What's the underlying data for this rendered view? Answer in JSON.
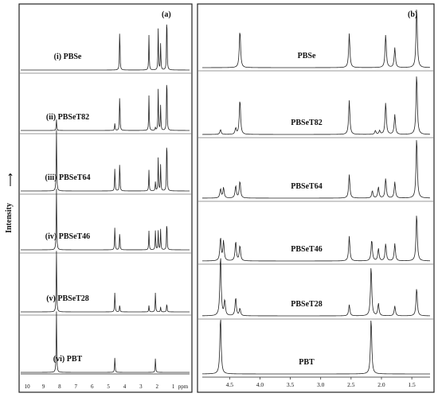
{
  "figure": {
    "ylabel": "Intensity",
    "arrow_glyph": "⟶"
  },
  "chart_data": [
    {
      "panel": "(a)",
      "type": "line",
      "subtype": "stacked 1H NMR spectra",
      "xlabel": "ppm",
      "xlim": [
        10.4,
        0
      ],
      "x_reversed": true,
      "x_ticks": [
        "10",
        "9",
        "8",
        "7",
        "6",
        "5",
        "4",
        "3",
        "2",
        "1",
        "ppm"
      ],
      "x_tick_values": [
        10,
        9,
        8,
        7,
        6,
        5,
        4,
        3,
        2,
        1
      ],
      "grid": false,
      "series": [
        {
          "name": "(i) PBSe",
          "peaks": [
            {
              "x": 4.3,
              "y": 0.7
            },
            {
              "x": 2.5,
              "y": 0.55
            },
            {
              "x": 1.93,
              "y": 0.65
            },
            {
              "x": 1.78,
              "y": 0.42
            },
            {
              "x": 1.4,
              "y": 1.0
            }
          ]
        },
        {
          "name": "(ii) PBSeT82",
          "peaks": [
            {
              "x": 8.2,
              "y": 0.18
            },
            {
              "x": 4.6,
              "y": 0.12
            },
            {
              "x": 4.3,
              "y": 0.62
            },
            {
              "x": 2.5,
              "y": 0.55
            },
            {
              "x": 2.1,
              "y": 0.05
            },
            {
              "x": 1.93,
              "y": 0.65
            },
            {
              "x": 1.78,
              "y": 0.4
            },
            {
              "x": 1.4,
              "y": 1.0
            }
          ]
        },
        {
          "name": "(iii) PBSeT64",
          "peaks": [
            {
              "x": 8.2,
              "y": 1.0
            },
            {
              "x": 4.6,
              "y": 0.38
            },
            {
              "x": 4.3,
              "y": 0.5
            },
            {
              "x": 2.5,
              "y": 0.33
            },
            {
              "x": 2.1,
              "y": 0.15
            },
            {
              "x": 1.93,
              "y": 0.52
            },
            {
              "x": 1.78,
              "y": 0.42
            },
            {
              "x": 1.4,
              "y": 0.95
            }
          ]
        },
        {
          "name": "(iv) PBSeT46",
          "peaks": [
            {
              "x": 8.2,
              "y": 1.0
            },
            {
              "x": 4.6,
              "y": 0.38
            },
            {
              "x": 4.3,
              "y": 0.3
            },
            {
              "x": 2.5,
              "y": 0.3
            },
            {
              "x": 2.1,
              "y": 0.32
            },
            {
              "x": 1.93,
              "y": 0.3
            },
            {
              "x": 1.78,
              "y": 0.33
            },
            {
              "x": 1.4,
              "y": 0.52
            }
          ]
        },
        {
          "name": "(v) PBSeT28",
          "peaks": [
            {
              "x": 8.2,
              "y": 1.0
            },
            {
              "x": 4.6,
              "y": 0.33
            },
            {
              "x": 4.3,
              "y": 0.12
            },
            {
              "x": 2.5,
              "y": 0.1
            },
            {
              "x": 2.1,
              "y": 0.32
            },
            {
              "x": 1.78,
              "y": 0.08
            },
            {
              "x": 1.4,
              "y": 0.15
            }
          ]
        },
        {
          "name": "(vi) PBT",
          "peaks": [
            {
              "x": 8.2,
              "y": 1.0
            },
            {
              "x": 4.6,
              "y": 0.25
            },
            {
              "x": 2.1,
              "y": 0.23
            }
          ]
        }
      ]
    },
    {
      "panel": "(b)",
      "type": "line",
      "subtype": "stacked 1H NMR spectra (expanded)",
      "xlabel": "",
      "xlim": [
        4.95,
        1.2
      ],
      "x_reversed": true,
      "x_ticks": [
        "4.5",
        "4.0",
        "3.5",
        "3.0",
        "2.5",
        "2.0",
        "1.5"
      ],
      "x_tick_values": [
        4.5,
        4.0,
        3.5,
        3.0,
        2.5,
        2.0,
        1.5
      ],
      "grid": false,
      "series": [
        {
          "name": "PBSe",
          "peaks": [
            {
              "x": 4.33,
              "y": 0.62
            },
            {
              "x": 2.53,
              "y": 0.55
            },
            {
              "x": 1.93,
              "y": 0.54
            },
            {
              "x": 1.78,
              "y": 0.32
            },
            {
              "x": 1.42,
              "y": 1.0
            }
          ]
        },
        {
          "name": "PBSeT82",
          "peaks": [
            {
              "x": 4.65,
              "y": 0.08
            },
            {
              "x": 4.4,
              "y": 0.1
            },
            {
              "x": 4.33,
              "y": 0.58
            },
            {
              "x": 2.53,
              "y": 0.55
            },
            {
              "x": 2.1,
              "y": 0.06
            },
            {
              "x": 2.03,
              "y": 0.06
            },
            {
              "x": 1.93,
              "y": 0.52
            },
            {
              "x": 1.78,
              "y": 0.32
            },
            {
              "x": 1.42,
              "y": 1.0
            }
          ]
        },
        {
          "name": "PBSeT64",
          "peaks": [
            {
              "x": 4.65,
              "y": 0.15
            },
            {
              "x": 4.6,
              "y": 0.17
            },
            {
              "x": 4.4,
              "y": 0.2
            },
            {
              "x": 4.33,
              "y": 0.28
            },
            {
              "x": 2.53,
              "y": 0.38
            },
            {
              "x": 2.15,
              "y": 0.12
            },
            {
              "x": 2.05,
              "y": 0.18
            },
            {
              "x": 1.93,
              "y": 0.32
            },
            {
              "x": 1.78,
              "y": 0.26
            },
            {
              "x": 1.42,
              "y": 1.0
            }
          ]
        },
        {
          "name": "PBSeT46",
          "peaks": [
            {
              "x": 4.65,
              "y": 0.38
            },
            {
              "x": 4.6,
              "y": 0.32
            },
            {
              "x": 4.4,
              "y": 0.32
            },
            {
              "x": 4.33,
              "y": 0.25
            },
            {
              "x": 2.53,
              "y": 0.4
            },
            {
              "x": 2.16,
              "y": 0.35
            },
            {
              "x": 2.05,
              "y": 0.2
            },
            {
              "x": 1.93,
              "y": 0.28
            },
            {
              "x": 1.78,
              "y": 0.28
            },
            {
              "x": 1.42,
              "y": 0.78
            }
          ]
        },
        {
          "name": "PBSeT28",
          "peaks": [
            {
              "x": 4.65,
              "y": 1.0
            },
            {
              "x": 4.58,
              "y": 0.25
            },
            {
              "x": 4.4,
              "y": 0.3
            },
            {
              "x": 4.33,
              "y": 0.12
            },
            {
              "x": 2.53,
              "y": 0.18
            },
            {
              "x": 2.17,
              "y": 0.82
            },
            {
              "x": 2.05,
              "y": 0.2
            },
            {
              "x": 1.78,
              "y": 0.16
            },
            {
              "x": 1.42,
              "y": 0.46
            }
          ]
        },
        {
          "name": "PBT",
          "peaks": [
            {
              "x": 4.65,
              "y": 0.95
            },
            {
              "x": 2.17,
              "y": 0.92
            }
          ]
        }
      ]
    }
  ]
}
